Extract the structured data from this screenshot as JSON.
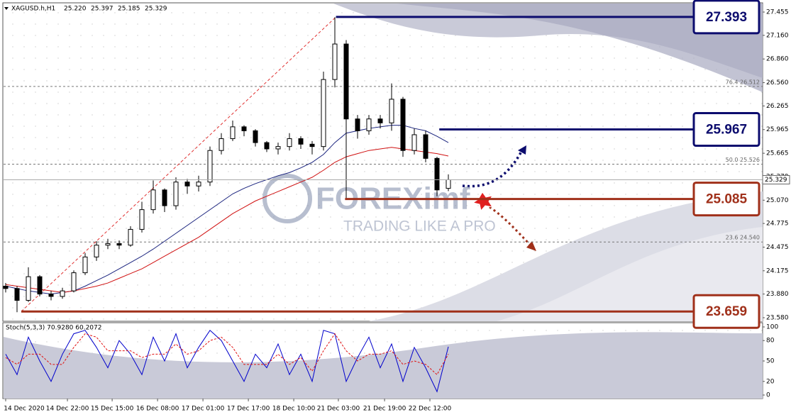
{
  "chart_data": {
    "type": "candlestick",
    "header": {
      "symbol": "XAGUSD.h,H1",
      "ohlc": [
        {
          "value": 25.22,
          "label": "25.220"
        },
        25.397,
        25.185,
        25.329
      ]
    },
    "watermark": {
      "brand": "FOREXimf",
      "slogan": "TRADING LIKE A PRO"
    },
    "xlim": [
      -0.1875,
      66.6875
    ],
    "xticks": [
      {
        "value": 0,
        "label": "14 Dec 2020"
      },
      {
        "value": 5.44,
        "label": "14 Dec 22:00"
      },
      {
        "value": 9.38,
        "label": "15 Dec 15:00"
      },
      {
        "value": 13.38,
        "label": "16 Dec 08:00"
      },
      {
        "value": 17.38,
        "label": "17 Dec 01:00"
      },
      {
        "value": 21.38,
        "label": "17 Dec 17:00"
      },
      {
        "value": 25.38,
        "label": "18 Dec 10:00"
      },
      {
        "value": 29.31,
        "label": "21 Dec 03:00"
      },
      {
        "value": 33.38,
        "label": "21 Dec 19:00"
      },
      {
        "value": 37.375,
        "label": "22 Dec 12:00"
      }
    ],
    "ylim": [
      23.535,
      27.563
    ],
    "yticks": [
      27.455,
      {
        "value": 27.16,
        "label": "27.160"
      },
      {
        "value": 26.86,
        "label": "26.860"
      },
      {
        "value": 26.56,
        "label": "26.560"
      },
      26.265,
      25.965,
      25.665,
      {
        "value": 25.37,
        "label": "25.370"
      },
      {
        "value": 25.07,
        "label": "25.070"
      },
      24.775,
      24.475,
      24.175,
      {
        "value": 23.88,
        "label": "23.880"
      },
      {
        "value": 23.58,
        "label": "23.580"
      }
    ],
    "candles": {
      "up_color": "#000000",
      "down_color": "#000000",
      "open": [
        23.98,
        23.95,
        23.8,
        24.1,
        23.88,
        23.85,
        23.92,
        24.15,
        24.35,
        24.5,
        24.52,
        24.5,
        24.7,
        24.95,
        25.2,
        25.0,
        25.3,
        25.25,
        25.3,
        25.7,
        25.85,
        26.0,
        25.95,
        25.8,
        25.72,
        25.75,
        25.85,
        25.78,
        25.75,
        26.6,
        27.05,
        26.1,
        25.95,
        26.1,
        26.05,
        26.35,
        25.7,
        25.9,
        25.6,
        25.22
      ],
      "high": [
        24.02,
        23.98,
        24.22,
        24.12,
        23.92,
        23.96,
        24.18,
        24.4,
        24.55,
        24.58,
        24.56,
        24.74,
        25.05,
        25.32,
        25.22,
        25.36,
        25.34,
        25.38,
        25.75,
        25.92,
        26.08,
        26.02,
        25.97,
        25.82,
        25.8,
        25.92,
        25.88,
        25.82,
        26.7,
        27.39,
        27.1,
        26.15,
        26.15,
        26.15,
        26.55,
        26.38,
        25.98,
        25.95,
        25.62,
        25.397
      ],
      "low": [
        23.9,
        23.65,
        23.78,
        23.85,
        23.8,
        23.82,
        23.9,
        24.12,
        24.3,
        24.45,
        24.45,
        24.48,
        24.66,
        24.9,
        24.92,
        24.95,
        25.15,
        25.18,
        25.25,
        25.65,
        25.82,
        25.88,
        25.75,
        25.68,
        25.65,
        25.7,
        25.72,
        25.65,
        25.7,
        26.5,
        25.08,
        25.85,
        25.9,
        25.98,
        25.95,
        25.62,
        25.65,
        25.55,
        25.12,
        25.185
      ],
      "close": [
        23.95,
        23.8,
        24.1,
        23.88,
        23.85,
        23.92,
        24.15,
        24.35,
        24.5,
        24.52,
        24.5,
        24.7,
        24.95,
        25.2,
        25.0,
        25.3,
        25.25,
        25.3,
        25.7,
        25.85,
        26.0,
        25.95,
        25.8,
        25.72,
        25.75,
        25.85,
        25.78,
        25.75,
        26.6,
        27.05,
        26.1,
        25.95,
        26.1,
        26.05,
        26.35,
        25.7,
        25.9,
        25.6,
        25.2,
        25.329
      ]
    },
    "series": [
      {
        "color": "#1a237e",
        "values": [
          23.98,
          23.95,
          23.92,
          23.9,
          23.88,
          23.9,
          23.92,
          23.98,
          24.05,
          24.12,
          24.2,
          24.28,
          24.36,
          24.45,
          24.55,
          24.65,
          24.75,
          24.85,
          24.95,
          25.05,
          25.15,
          25.22,
          25.28,
          25.33,
          25.38,
          25.42,
          25.48,
          25.55,
          25.65,
          25.8,
          25.92,
          25.95,
          25.98,
          26.0,
          26.02,
          26.02,
          25.98,
          25.95,
          25.88,
          25.8
        ]
      },
      {
        "color": "#d01010",
        "values": [
          24.0,
          23.98,
          23.96,
          23.94,
          23.92,
          23.9,
          23.92,
          23.95,
          23.98,
          24.02,
          24.08,
          24.14,
          24.2,
          24.28,
          24.36,
          24.44,
          24.52,
          24.6,
          24.7,
          24.8,
          24.9,
          24.98,
          25.06,
          25.12,
          25.18,
          25.24,
          25.3,
          25.36,
          25.45,
          25.55,
          25.62,
          25.66,
          25.7,
          25.72,
          25.74,
          25.72,
          25.7,
          25.68,
          25.66,
          25.63
        ]
      }
    ],
    "fib_levels": [
      {
        "label": "76.4 26.512",
        "value": 26.512
      },
      {
        "label": "50.0 25.526",
        "value": 25.526
      },
      {
        "label": "23.6 24.540",
        "value": 24.54
      }
    ],
    "levels": [
      {
        "value": 27.393,
        "color": "#0c0c6e"
      },
      {
        "value": 25.967,
        "color": "#0c0c6e"
      },
      {
        "value": 25.085,
        "color": "#a0301a"
      },
      {
        "value": 23.659,
        "color": "#a0301a"
      }
    ],
    "stochastic": {
      "title": "Stoch(5,3,3) 70.9280 60.2072",
      "ylim": [
        -3.1,
        106.25
      ],
      "yticks": [
        100,
        80,
        50,
        20,
        0
      ],
      "main": {
        "color": "#0000cc",
        "values": [
          60,
          30,
          85,
          50,
          20,
          60,
          90,
          95,
          70,
          40,
          80,
          60,
          30,
          85,
          50,
          90,
          40,
          70,
          95,
          80,
          50,
          20,
          60,
          40,
          75,
          30,
          60,
          20,
          95,
          90,
          20,
          55,
          85,
          40,
          75,
          20,
          70,
          40,
          5,
          70.928
        ]
      },
      "signal": {
        "color": "#e01010",
        "values": [
          55,
          45,
          60,
          60,
          45,
          45,
          70,
          90,
          85,
          65,
          65,
          65,
          55,
          60,
          60,
          75,
          60,
          65,
          80,
          85,
          70,
          45,
          45,
          45,
          60,
          45,
          55,
          35,
          65,
          90,
          65,
          50,
          60,
          60,
          65,
          45,
          50,
          45,
          30,
          60.2072
        ]
      }
    }
  }
}
